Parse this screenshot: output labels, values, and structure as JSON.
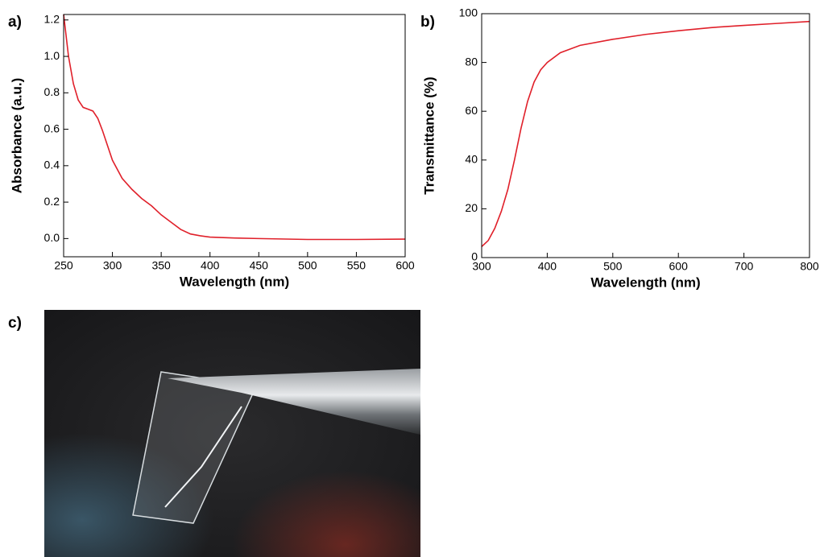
{
  "chart_data": [
    {
      "type": "line",
      "panel_label": "a)",
      "x_label": "Wavelength (nm)",
      "y_label": "Absorbance (a.u.)",
      "x": [
        250,
        255,
        260,
        265,
        270,
        275,
        280,
        285,
        290,
        295,
        300,
        310,
        320,
        330,
        340,
        350,
        360,
        370,
        380,
        390,
        400,
        425,
        450,
        500,
        550,
        600
      ],
      "series": [
        {
          "color": "#e0202a",
          "values": [
            1.23,
            1.0,
            0.85,
            0.76,
            0.72,
            0.71,
            0.7,
            0.66,
            0.59,
            0.51,
            0.43,
            0.33,
            0.27,
            0.22,
            0.18,
            0.13,
            0.09,
            0.05,
            0.025,
            0.015,
            0.008,
            0.003,
            0.0,
            -0.005,
            -0.005,
            -0.003
          ]
        }
      ],
      "xlim": [
        250,
        600
      ],
      "ylim": [
        -0.1,
        1.23
      ],
      "xticks": [
        250,
        300,
        350,
        400,
        450,
        500,
        550,
        600
      ],
      "yticks": [
        {
          "value": 0,
          "label": "0.0"
        },
        0.2,
        0.4,
        0.6,
        0.8,
        {
          "value": 1,
          "label": "1.0"
        },
        1.2
      ]
    },
    {
      "type": "line",
      "panel_label": "b)",
      "x_label": "Wavelength (nm)",
      "y_label": "Transmittance (%)",
      "x": [
        300,
        310,
        320,
        330,
        340,
        350,
        360,
        370,
        380,
        390,
        400,
        420,
        450,
        500,
        550,
        600,
        650,
        700,
        750,
        800
      ],
      "series": [
        {
          "color": "#e0202a",
          "values": [
            4.5,
            7,
            12,
            19,
            28,
            40,
            53,
            64,
            72,
            77,
            80,
            84,
            87,
            89.5,
            91.5,
            93,
            94.3,
            95.2,
            96,
            96.8
          ]
        }
      ],
      "xlim": [
        300,
        800
      ],
      "ylim": [
        0,
        100
      ],
      "xticks": [
        300,
        400,
        500,
        600,
        700,
        800
      ],
      "yticks": [
        0,
        20,
        40,
        60,
        80,
        100
      ]
    }
  ],
  "photo": {
    "panel_label": "c)"
  }
}
